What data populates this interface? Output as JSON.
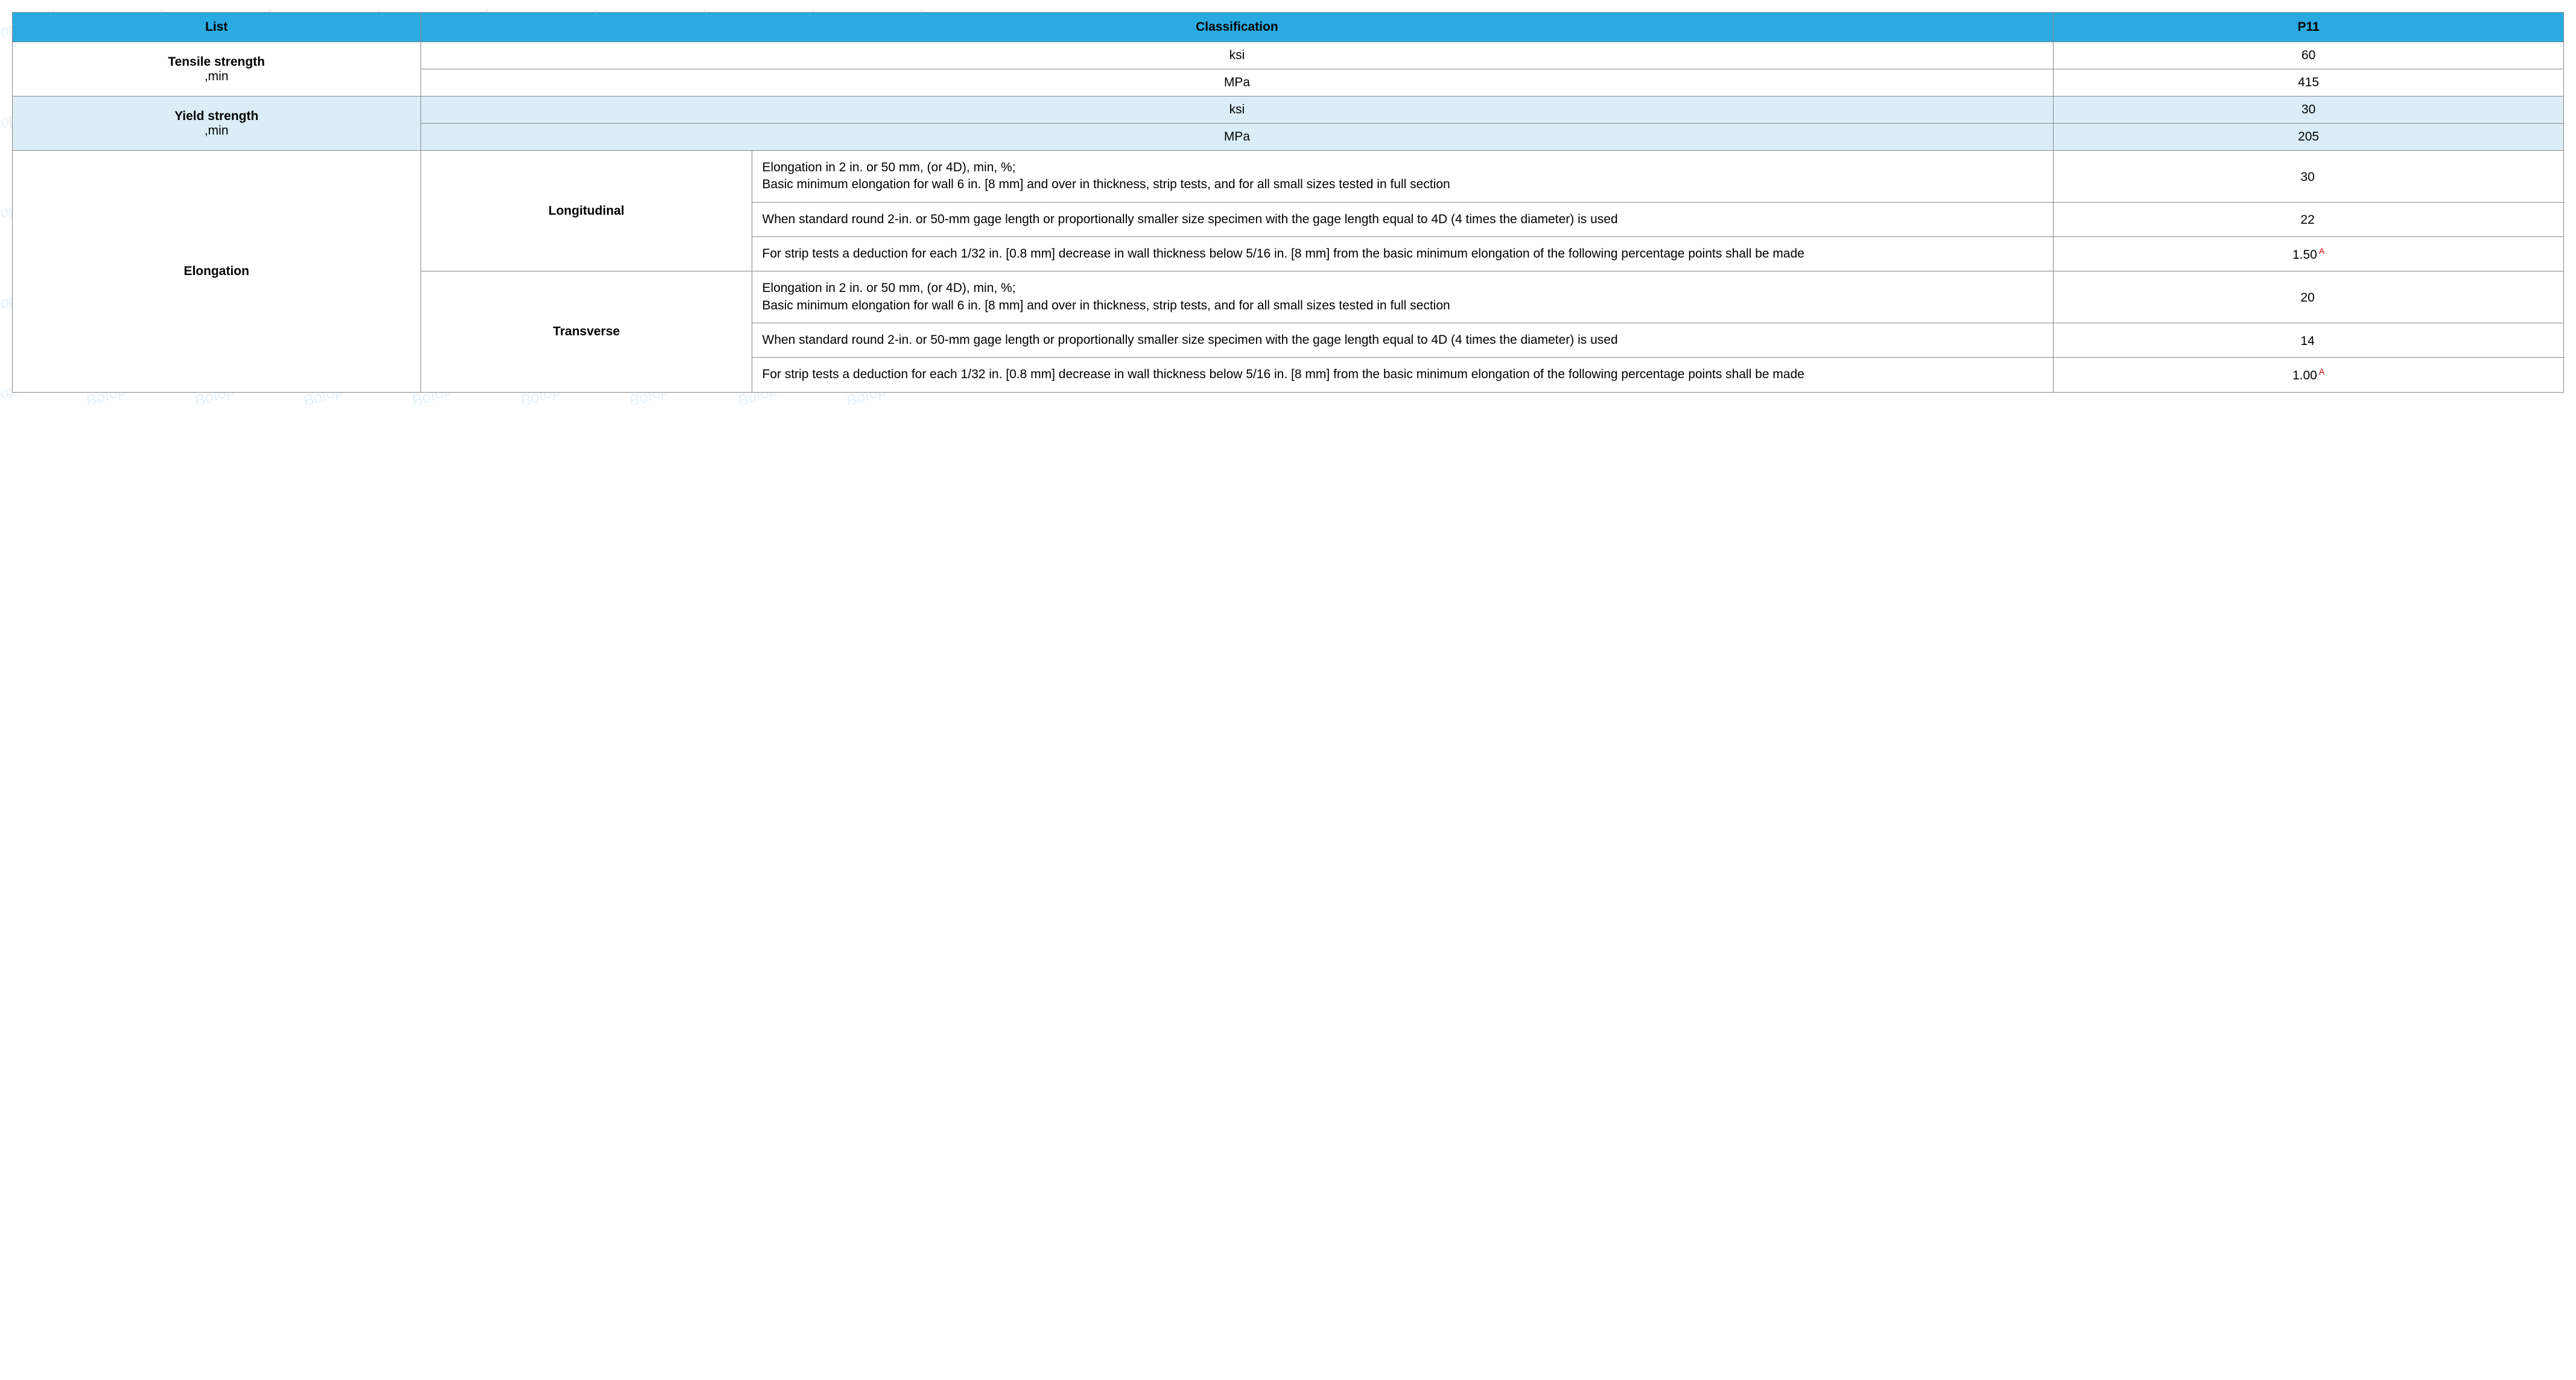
{
  "watermark_text": "Botop Steel",
  "table": {
    "headers": {
      "col_list": "List",
      "col_class": "Classification",
      "col_p11": "P11"
    },
    "header_bg": "#29abe2",
    "alt_row_bg": "#dbeef7",
    "sup_color": "#d00000",
    "tensile": {
      "label": "Tensile strength",
      "sublabel": ",min",
      "rows": [
        {
          "unit": "ksi",
          "value": "60"
        },
        {
          "unit": "MPa",
          "value": "415"
        }
      ]
    },
    "yield_": {
      "label": "Yield strength",
      "sublabel": ",min",
      "rows": [
        {
          "unit": "ksi",
          "value": "30"
        },
        {
          "unit": "MPa",
          "value": "205"
        }
      ]
    },
    "elongation": {
      "label": "Elongation",
      "groups": [
        {
          "heading": "Longitudinal",
          "rows": [
            {
              "desc": "Elongation in 2 in. or 50 mm, (or 4D), min, %;\nBasic minimum elongation for wall 6 in. [8 mm] and over in thickness, strip tests, and for all small sizes tested in full section",
              "value": "30",
              "sup": ""
            },
            {
              "desc": "When standard round 2-in. or 50-mm gage length or proportionally smaller size specimen with the gage length equal to 4D (4 times the diameter) is used",
              "value": "22",
              "sup": ""
            },
            {
              "desc": "For strip tests a deduction for each 1/32 in. [0.8 mm] decrease in wall thickness below 5/16 in. [8 mm] from the basic minimum elongation of the following percentage points shall be made",
              "value": "1.50",
              "sup": "A"
            }
          ]
        },
        {
          "heading": "Transverse",
          "rows": [
            {
              "desc": "Elongation in 2 in. or 50 mm, (or 4D), min, %;\nBasic minimum elongation for wall 6 in. [8 mm] and over in thickness, strip tests, and for all small sizes tested in full section",
              "value": "20",
              "sup": ""
            },
            {
              "desc": "When standard round 2-in. or 50-mm gage length or proportionally smaller size specimen with the gage length equal to 4D (4 times the diameter) is used",
              "value": "14",
              "sup": ""
            },
            {
              "desc": "For strip tests a deduction for each 1/32 in. [0.8 mm] decrease in wall thickness below 5/16 in. [8 mm] from the basic minimum elongation of the following percentage points shall be made",
              "value": "1.00",
              "sup": "A"
            }
          ]
        }
      ]
    }
  }
}
